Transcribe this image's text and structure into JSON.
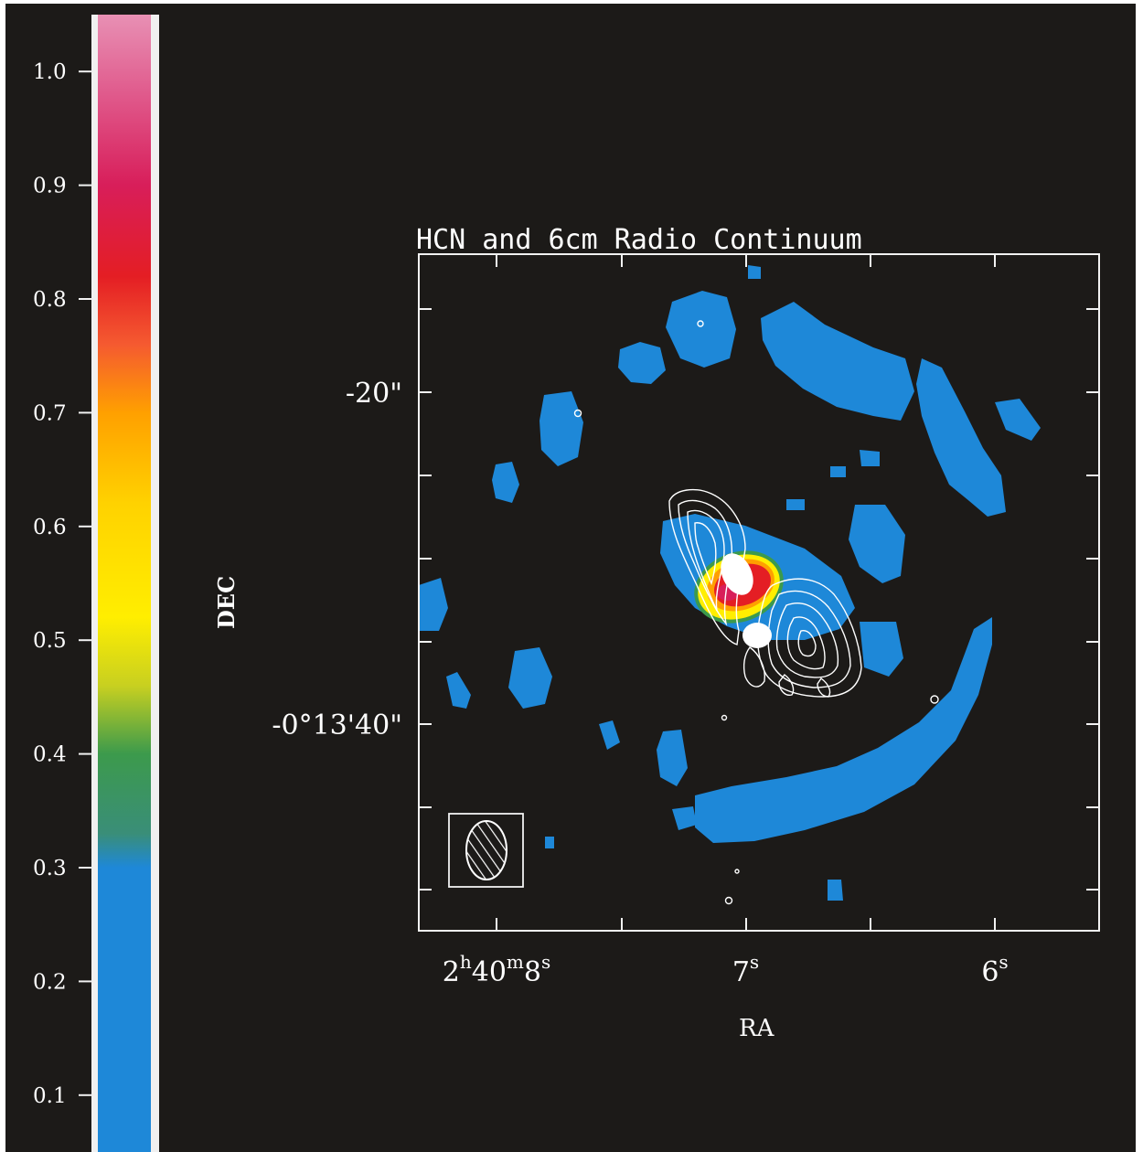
{
  "chart_data": {
    "type": "heatmap",
    "title": "HCN and 6cm Radio Continuum",
    "xlabel": "RA",
    "ylabel": "DEC",
    "x_ticks": [
      {
        "label_parts": [
          "2",
          "h",
          "40",
          "m",
          "8",
          "s"
        ],
        "value_s": 8
      },
      {
        "label_parts": [
          "7",
          "s"
        ],
        "value_s": 7
      },
      {
        "label_parts": [
          "6",
          "s"
        ],
        "value_s": 6
      }
    ],
    "y_ticks": [
      {
        "label": "-20\"",
        "value_arcsec": 20
      },
      {
        "label": "-0°13'40\"",
        "value_arcsec": 40
      }
    ],
    "colorbar": {
      "ticks": [
        "1.0",
        "0.9",
        "0.8",
        "0.7",
        "0.6",
        "0.5",
        "0.4",
        "0.3",
        "0.2",
        "0.1"
      ],
      "range": [
        0.05,
        1.05
      ],
      "stops": [
        {
          "v": 0.05,
          "color": "#1e88d8"
        },
        {
          "v": 0.3,
          "color": "#1e88d8"
        },
        {
          "v": 0.33,
          "color": "#3a8e78"
        },
        {
          "v": 0.4,
          "color": "#3c9a4c"
        },
        {
          "v": 0.46,
          "color": "#c8d020"
        },
        {
          "v": 0.52,
          "color": "#ffee00"
        },
        {
          "v": 0.62,
          "color": "#ffd200"
        },
        {
          "v": 0.7,
          "color": "#ffa000"
        },
        {
          "v": 0.76,
          "color": "#f55a30"
        },
        {
          "v": 0.82,
          "color": "#e41e24"
        },
        {
          "v": 0.9,
          "color": "#d81e5a"
        },
        {
          "v": 0.98,
          "color": "#e05a8c"
        },
        {
          "v": 1.05,
          "color": "#e890b4"
        }
      ]
    },
    "grid": false,
    "colors": {
      "background": "#1c1a18",
      "low_emission": "#1e88d8",
      "mid": "#ffee00",
      "high": "#e41e24",
      "contours": "#ffffff"
    }
  }
}
